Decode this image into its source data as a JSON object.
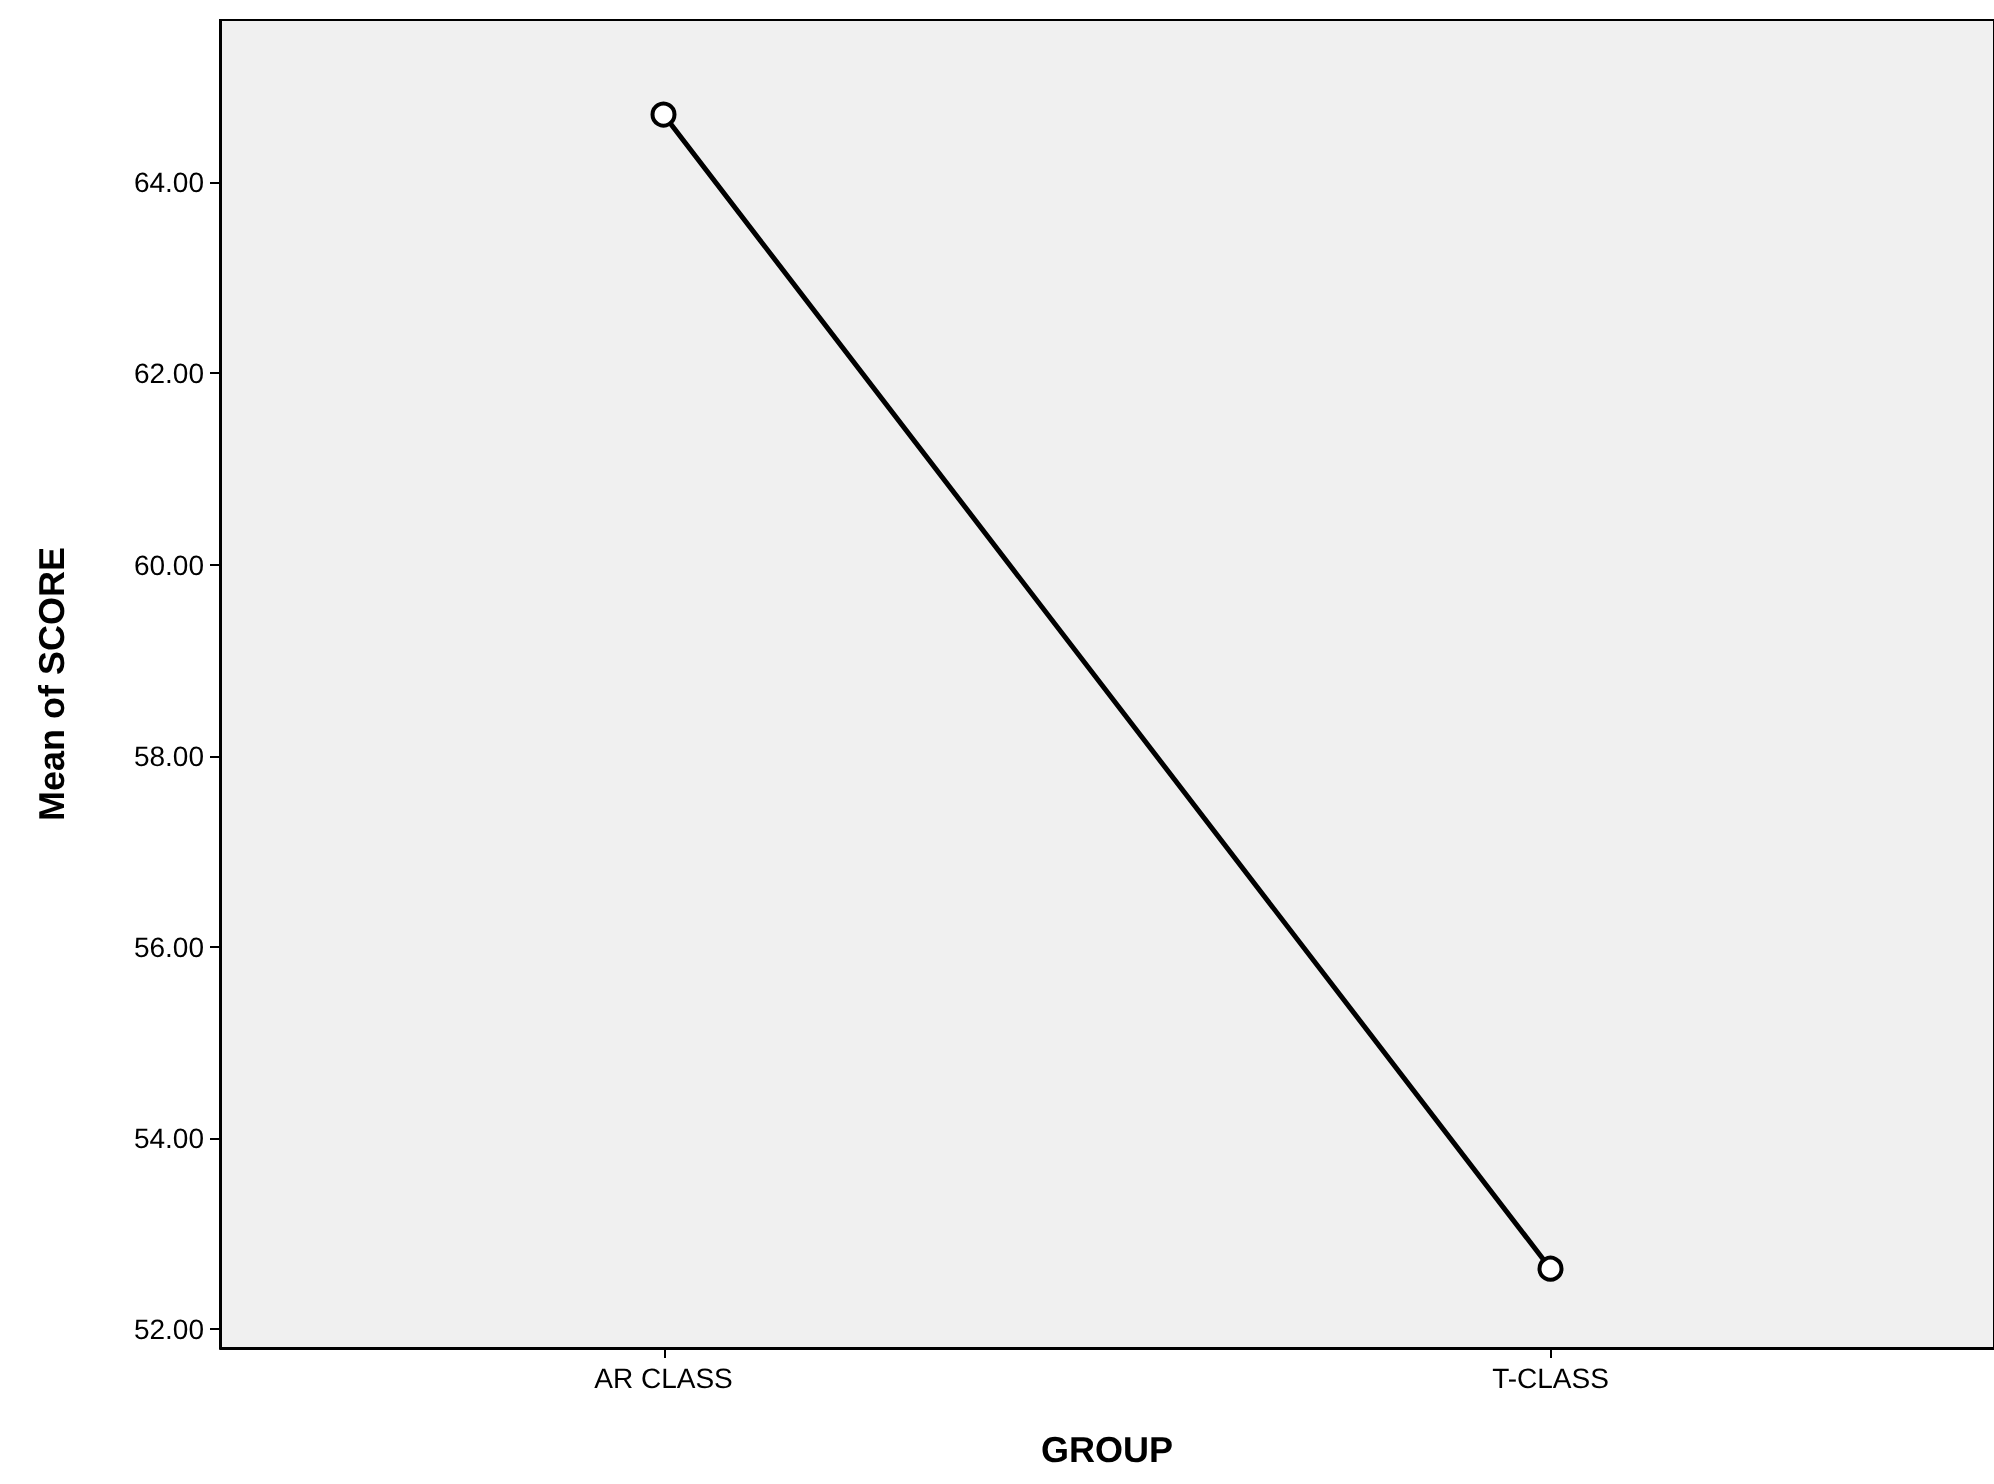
{
  "chart_data": {
    "type": "line",
    "xlabel": "GROUP",
    "ylabel": "Mean of SCORE",
    "categories": [
      "AR CLASS",
      "T-CLASS"
    ],
    "series": [
      {
        "color": "#000000",
        "values": [
          64.71,
          52.63
        ]
      }
    ],
    "ylim": [
      51.8,
      65.7
    ],
    "yticks": [
      {
        "value": 52,
        "label": "52.00"
      },
      {
        "value": 54,
        "label": "54.00"
      },
      {
        "value": 56,
        "label": "56.00"
      },
      {
        "value": 58,
        "label": "58.00"
      },
      {
        "value": 60,
        "label": "60.00"
      },
      {
        "value": 62,
        "label": "62.00"
      },
      {
        "value": 64,
        "label": "64.00"
      }
    ],
    "grid": false,
    "marker": "circle",
    "line_style": "solid"
  }
}
